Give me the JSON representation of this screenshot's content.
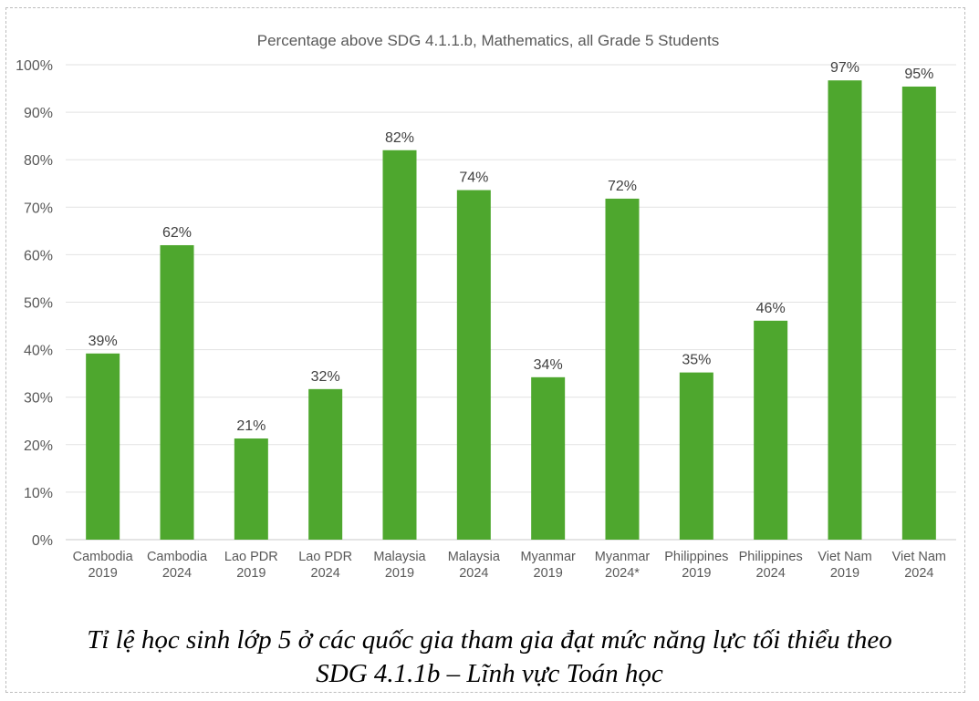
{
  "chart_data": {
    "type": "bar",
    "title": "Percentage above SDG 4.1.1.b, Mathematics, all Grade 5 Students",
    "categories": [
      [
        "Cambodia",
        "2019"
      ],
      [
        "Cambodia",
        "2024"
      ],
      [
        "Lao PDR",
        "2019"
      ],
      [
        "Lao PDR",
        "2024"
      ],
      [
        "Malaysia",
        "2019"
      ],
      [
        "Malaysia",
        "2024"
      ],
      [
        "Myanmar",
        "2019"
      ],
      [
        "Myanmar",
        "2024*"
      ],
      [
        "Philippines",
        "2019"
      ],
      [
        "Philippines",
        "2024"
      ],
      [
        "Viet Nam",
        "2019"
      ],
      [
        "Viet Nam",
        "2024"
      ]
    ],
    "values": [
      39.2,
      62.0,
      21.3,
      31.7,
      82.0,
      73.6,
      34.2,
      71.8,
      35.2,
      46.1,
      96.7,
      95.4
    ],
    "data_labels": [
      "39%",
      "62%",
      "21%",
      "32%",
      "82%",
      "74%",
      "34%",
      "72%",
      "35%",
      "46%",
      "97%",
      "95%"
    ],
    "ylim": [
      0,
      100
    ],
    "yticks": [
      "0%",
      "10%",
      "20%",
      "30%",
      "40%",
      "50%",
      "60%",
      "70%",
      "80%",
      "90%",
      "100%"
    ],
    "grid": true,
    "bar_color": "#4ea72e",
    "xlabel": "",
    "ylabel": ""
  },
  "caption": {
    "line1": "Tỉ lệ học sinh lớp 5 ở các quốc gia tham gia đạt mức năng lực tối thiểu theo",
    "line2": "SDG 4.1.1b – Lĩnh vực Toán học"
  }
}
